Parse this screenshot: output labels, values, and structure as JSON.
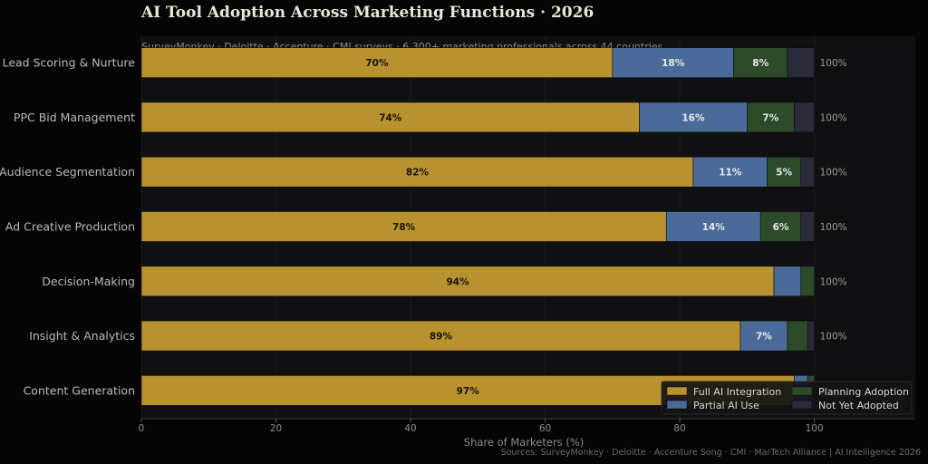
{
  "title": "AI Tool Adoption Across Marketing Functions  ·  2026",
  "subtitle": "SurveyMonkey · Deloitte · Accenture · CMI surveys  ·  6,300+ marketing professionals across 44 countries",
  "source_note": "Sources: SurveyMonkey · Deloitte · Accenture Song · CMI · MarTech Alliance  |  AI Intelligence 2026",
  "chart_data": {
    "type": "bar",
    "orientation": "horizontal",
    "stacked": true,
    "title": "AI Tool Adoption Across Marketing Functions  ·  2026",
    "xlabel": "Share of Marketers (%)",
    "ylabel": "",
    "xlim": [
      0,
      115
    ],
    "xticks": [
      0,
      20,
      40,
      60,
      80,
      100
    ],
    "grid": false,
    "legend_position": "bottom-right",
    "categories": [
      "Lead Scoring & Nurture",
      "PPC Bid Management",
      "Audience Segmentation",
      "Ad Creative Production",
      "Decision-Making",
      "Insight & Analytics",
      "Content Generation"
    ],
    "series": [
      {
        "name": "Full AI Integration",
        "color": "#b8922e",
        "label_color": "#1a1408",
        "values": [
          70,
          74,
          82,
          78,
          94,
          89,
          97
        ],
        "labels": [
          "70%",
          "74%",
          "82%",
          "78%",
          "94%",
          "89%",
          "97%"
        ]
      },
      {
        "name": "Partial AI Use",
        "color": "#4a6b9a",
        "label_color": "#e8e8e8",
        "values": [
          18,
          16,
          11,
          14,
          4,
          7,
          2
        ],
        "labels": [
          "18%",
          "16%",
          "11%",
          "14%",
          "",
          "7%",
          ""
        ]
      },
      {
        "name": "Planning Adoption",
        "color": "#2d4a2b",
        "label_color": "#e8e8e8",
        "values": [
          8,
          7,
          5,
          6,
          2,
          3,
          1
        ],
        "labels": [
          "8%",
          "7%",
          "5%",
          "6%",
          "",
          "",
          ""
        ]
      },
      {
        "name": "Not Yet Adopted",
        "color": "#2a2a3a",
        "label_color": "#e8e8e8",
        "values": [
          4,
          3,
          2,
          2,
          0,
          1,
          0
        ],
        "labels": [
          "",
          "",
          "",
          "",
          "",
          "",
          ""
        ]
      }
    ],
    "totals": [
      "100%",
      "100%",
      "100%",
      "100%",
      "100%",
      "100%",
      "100%"
    ]
  }
}
